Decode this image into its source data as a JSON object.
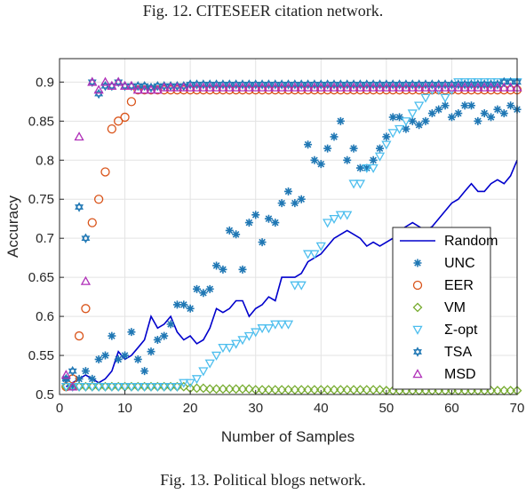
{
  "captions": {
    "top": "Fig. 12.     CITESEER citation network.",
    "bottom": "Fig. 13.     Political blogs network."
  },
  "chart_data": {
    "type": "line",
    "title": "",
    "xlabel": "Number of Samples",
    "ylabel": "Accuracy",
    "xlim": [
      0,
      70
    ],
    "ylim": [
      0.5,
      0.93
    ],
    "xticks": [
      0,
      10,
      20,
      30,
      40,
      50,
      60,
      70
    ],
    "yticks": [
      0.5,
      0.55,
      0.6,
      0.65,
      0.7,
      0.75,
      0.8,
      0.85,
      0.9
    ],
    "grid": true,
    "legend_position": "lower-right",
    "colors": {
      "Random": "#0000cc",
      "UNC": "#1f77b4",
      "EER": "#d95319",
      "VM": "#77ac30",
      "Σ-opt": "#4dbeee",
      "TSA": "#1f77b4",
      "MSD": "#b02fb8"
    },
    "series": [
      {
        "name": "Random",
        "marker": "line",
        "x": [
          1,
          2,
          3,
          4,
          5,
          6,
          7,
          8,
          9,
          10,
          11,
          12,
          13,
          14,
          15,
          16,
          17,
          18,
          19,
          20,
          21,
          22,
          23,
          24,
          25,
          26,
          27,
          28,
          29,
          30,
          31,
          32,
          33,
          34,
          35,
          36,
          37,
          38,
          39,
          40,
          41,
          42,
          43,
          44,
          45,
          46,
          47,
          48,
          49,
          50,
          51,
          52,
          53,
          54,
          55,
          56,
          57,
          58,
          59,
          60,
          61,
          62,
          63,
          64,
          65,
          66,
          67,
          68,
          69,
          70
        ],
        "y": [
          0.51,
          0.515,
          0.52,
          0.525,
          0.52,
          0.515,
          0.52,
          0.53,
          0.555,
          0.545,
          0.55,
          0.56,
          0.57,
          0.6,
          0.585,
          0.59,
          0.6,
          0.58,
          0.57,
          0.575,
          0.565,
          0.57,
          0.585,
          0.61,
          0.605,
          0.61,
          0.62,
          0.62,
          0.6,
          0.61,
          0.615,
          0.625,
          0.62,
          0.65,
          0.65,
          0.65,
          0.655,
          0.67,
          0.675,
          0.68,
          0.69,
          0.7,
          0.705,
          0.71,
          0.705,
          0.7,
          0.69,
          0.695,
          0.69,
          0.695,
          0.7,
          0.71,
          0.715,
          0.72,
          0.715,
          0.71,
          0.715,
          0.725,
          0.735,
          0.745,
          0.75,
          0.76,
          0.77,
          0.76,
          0.76,
          0.77,
          0.775,
          0.77,
          0.78,
          0.8
        ]
      },
      {
        "name": "UNC",
        "marker": "asterisk",
        "x": [
          1,
          2,
          3,
          4,
          5,
          6,
          7,
          8,
          9,
          10,
          11,
          12,
          13,
          14,
          15,
          16,
          17,
          18,
          19,
          20,
          21,
          22,
          23,
          24,
          25,
          26,
          27,
          28,
          29,
          30,
          31,
          32,
          33,
          34,
          35,
          36,
          37,
          38,
          39,
          40,
          41,
          42,
          43,
          44,
          45,
          46,
          47,
          48,
          49,
          50,
          51,
          52,
          53,
          54,
          55,
          56,
          57,
          58,
          59,
          60,
          61,
          62,
          63,
          64,
          65,
          66,
          67,
          68,
          69,
          70
        ],
        "y": [
          0.52,
          0.51,
          0.52,
          0.53,
          0.52,
          0.545,
          0.55,
          0.575,
          0.545,
          0.55,
          0.58,
          0.545,
          0.53,
          0.555,
          0.57,
          0.575,
          0.59,
          0.615,
          0.615,
          0.61,
          0.635,
          0.63,
          0.635,
          0.665,
          0.66,
          0.71,
          0.705,
          0.66,
          0.72,
          0.73,
          0.695,
          0.725,
          0.72,
          0.745,
          0.76,
          0.745,
          0.75,
          0.82,
          0.8,
          0.795,
          0.815,
          0.83,
          0.85,
          0.8,
          0.815,
          0.79,
          0.79,
          0.8,
          0.815,
          0.83,
          0.855,
          0.855,
          0.84,
          0.85,
          0.845,
          0.85,
          0.86,
          0.865,
          0.87,
          0.855,
          0.86,
          0.87,
          0.87,
          0.85,
          0.86,
          0.855,
          0.865,
          0.86,
          0.87,
          0.865
        ]
      },
      {
        "name": "EER",
        "marker": "circle",
        "x": [
          1,
          2,
          3,
          4,
          5,
          6,
          7,
          8,
          9,
          10,
          11,
          12,
          13,
          14,
          15,
          16,
          17,
          18,
          19,
          20,
          21,
          22,
          23,
          24,
          25,
          26,
          27,
          28,
          29,
          30,
          31,
          32,
          33,
          34,
          35,
          36,
          37,
          38,
          39,
          40,
          41,
          42,
          43,
          44,
          45,
          46,
          47,
          48,
          49,
          50,
          51,
          52,
          53,
          54,
          55,
          56,
          57,
          58,
          59,
          60,
          61,
          62,
          63,
          64,
          65,
          66,
          67,
          68,
          69,
          70
        ],
        "y": [
          0.51,
          0.52,
          0.575,
          0.61,
          0.72,
          0.75,
          0.785,
          0.84,
          0.85,
          0.855,
          0.875,
          0.89,
          0.89,
          0.89,
          0.89,
          0.89,
          0.89,
          0.89,
          0.89,
          0.89,
          0.89,
          0.89,
          0.89,
          0.89,
          0.89,
          0.89,
          0.89,
          0.89,
          0.89,
          0.89,
          0.89,
          0.89,
          0.89,
          0.89,
          0.89,
          0.89,
          0.89,
          0.89,
          0.89,
          0.89,
          0.89,
          0.89,
          0.89,
          0.89,
          0.89,
          0.89,
          0.89,
          0.89,
          0.89,
          0.89,
          0.89,
          0.89,
          0.89,
          0.89,
          0.89,
          0.89,
          0.89,
          0.89,
          0.89,
          0.89,
          0.89,
          0.89,
          0.89,
          0.89,
          0.89,
          0.89,
          0.89,
          0.89,
          0.89,
          0.89
        ]
      },
      {
        "name": "VM",
        "marker": "diamond",
        "x": [
          1,
          2,
          3,
          4,
          5,
          6,
          7,
          8,
          9,
          10,
          11,
          12,
          13,
          14,
          15,
          16,
          17,
          18,
          19,
          20,
          21,
          22,
          23,
          24,
          25,
          26,
          27,
          28,
          29,
          30,
          31,
          32,
          33,
          34,
          35,
          36,
          37,
          38,
          39,
          40,
          41,
          42,
          43,
          44,
          45,
          46,
          47,
          48,
          49,
          50,
          51,
          52,
          53,
          54,
          55,
          56,
          57,
          58,
          59,
          60,
          61,
          62,
          63,
          64,
          65,
          66,
          67,
          68,
          69,
          70
        ],
        "y": [
          0.51,
          0.51,
          0.51,
          0.51,
          0.51,
          0.51,
          0.51,
          0.51,
          0.51,
          0.51,
          0.51,
          0.51,
          0.51,
          0.51,
          0.51,
          0.51,
          0.51,
          0.51,
          0.51,
          0.508,
          0.508,
          0.508,
          0.507,
          0.507,
          0.507,
          0.507,
          0.507,
          0.507,
          0.507,
          0.506,
          0.506,
          0.506,
          0.506,
          0.506,
          0.506,
          0.506,
          0.506,
          0.506,
          0.506,
          0.506,
          0.506,
          0.506,
          0.506,
          0.506,
          0.506,
          0.506,
          0.506,
          0.506,
          0.506,
          0.505,
          0.505,
          0.505,
          0.505,
          0.505,
          0.505,
          0.505,
          0.505,
          0.505,
          0.505,
          0.505,
          0.505,
          0.505,
          0.505,
          0.505,
          0.505,
          0.505,
          0.505,
          0.505,
          0.505,
          0.505
        ]
      },
      {
        "name": "Σ-opt",
        "marker": "triangle-down",
        "x": [
          1,
          2,
          3,
          4,
          5,
          6,
          7,
          8,
          9,
          10,
          11,
          12,
          13,
          14,
          15,
          16,
          17,
          18,
          19,
          20,
          21,
          22,
          23,
          24,
          25,
          26,
          27,
          28,
          29,
          30,
          31,
          32,
          33,
          34,
          35,
          36,
          37,
          38,
          39,
          40,
          41,
          42,
          43,
          44,
          45,
          46,
          47,
          48,
          49,
          50,
          51,
          52,
          53,
          54,
          55,
          56,
          57,
          58,
          59,
          60,
          61,
          62,
          63,
          64,
          65,
          66,
          67,
          68,
          69,
          70
        ],
        "y": [
          0.51,
          0.51,
          0.51,
          0.51,
          0.51,
          0.51,
          0.51,
          0.51,
          0.51,
          0.51,
          0.51,
          0.51,
          0.51,
          0.51,
          0.51,
          0.51,
          0.51,
          0.51,
          0.515,
          0.515,
          0.52,
          0.53,
          0.54,
          0.55,
          0.56,
          0.56,
          0.565,
          0.57,
          0.575,
          0.58,
          0.585,
          0.585,
          0.59,
          0.59,
          0.59,
          0.64,
          0.64,
          0.68,
          0.68,
          0.69,
          0.72,
          0.725,
          0.73,
          0.73,
          0.77,
          0.77,
          0.79,
          0.79,
          0.805,
          0.82,
          0.835,
          0.84,
          0.85,
          0.86,
          0.87,
          0.88,
          0.89,
          0.89,
          0.88,
          0.89,
          0.9,
          0.9,
          0.9,
          0.9,
          0.9,
          0.9,
          0.9,
          0.9,
          0.9,
          0.9
        ]
      },
      {
        "name": "TSA",
        "marker": "hexagram",
        "x": [
          1,
          2,
          3,
          4,
          5,
          6,
          7,
          8,
          9,
          10,
          11,
          12,
          13,
          14,
          15,
          16,
          17,
          18,
          19,
          20,
          21,
          22,
          23,
          24,
          25,
          26,
          27,
          28,
          29,
          30,
          31,
          32,
          33,
          34,
          35,
          36,
          37,
          38,
          39,
          40,
          41,
          42,
          43,
          44,
          45,
          46,
          47,
          48,
          49,
          50,
          51,
          52,
          53,
          54,
          55,
          56,
          57,
          58,
          59,
          60,
          61,
          62,
          63,
          64,
          65,
          66,
          67,
          68,
          69,
          70
        ],
        "y": [
          0.52,
          0.53,
          0.74,
          0.7,
          0.9,
          0.885,
          0.895,
          0.895,
          0.9,
          0.895,
          0.895,
          0.895,
          0.895,
          0.893,
          0.895,
          0.895,
          0.895,
          0.895,
          0.895,
          0.897,
          0.897,
          0.897,
          0.897,
          0.897,
          0.897,
          0.897,
          0.897,
          0.897,
          0.897,
          0.897,
          0.897,
          0.897,
          0.897,
          0.897,
          0.897,
          0.897,
          0.897,
          0.897,
          0.897,
          0.897,
          0.897,
          0.897,
          0.897,
          0.897,
          0.897,
          0.897,
          0.897,
          0.897,
          0.897,
          0.897,
          0.897,
          0.897,
          0.897,
          0.897,
          0.897,
          0.897,
          0.897,
          0.897,
          0.897,
          0.897,
          0.897,
          0.897,
          0.897,
          0.897,
          0.897,
          0.897,
          0.897,
          0.9,
          0.9,
          0.9
        ]
      },
      {
        "name": "MSD",
        "marker": "triangle-up",
        "x": [
          1,
          2,
          3,
          4,
          5,
          6,
          7,
          8,
          9,
          10,
          11,
          12,
          13,
          14,
          15,
          16,
          17,
          18,
          19,
          20,
          21,
          22,
          23,
          24,
          25,
          26,
          27,
          28,
          29,
          30,
          31,
          32,
          33,
          34,
          35,
          36,
          37,
          38,
          39,
          40,
          41,
          42,
          43,
          44,
          45,
          46,
          47,
          48,
          49,
          50,
          51,
          52,
          53,
          54,
          55,
          56,
          57,
          58,
          59,
          60,
          61,
          62,
          63,
          64,
          65,
          66,
          67,
          68,
          69,
          70
        ],
        "y": [
          0.525,
          0.51,
          0.83,
          0.645,
          0.9,
          0.89,
          0.9,
          0.895,
          0.9,
          0.895,
          0.895,
          0.89,
          0.89,
          0.89,
          0.89,
          0.893,
          0.893,
          0.893,
          0.893,
          0.893,
          0.893,
          0.893,
          0.893,
          0.893,
          0.893,
          0.893,
          0.893,
          0.893,
          0.893,
          0.893,
          0.893,
          0.893,
          0.893,
          0.893,
          0.893,
          0.893,
          0.893,
          0.893,
          0.893,
          0.893,
          0.893,
          0.893,
          0.893,
          0.893,
          0.893,
          0.893,
          0.893,
          0.893,
          0.893,
          0.893,
          0.893,
          0.893,
          0.893,
          0.893,
          0.893,
          0.893,
          0.893,
          0.893,
          0.893,
          0.893,
          0.893,
          0.893,
          0.893,
          0.893,
          0.893,
          0.893,
          0.893,
          0.893,
          0.893,
          0.893
        ]
      }
    ]
  }
}
